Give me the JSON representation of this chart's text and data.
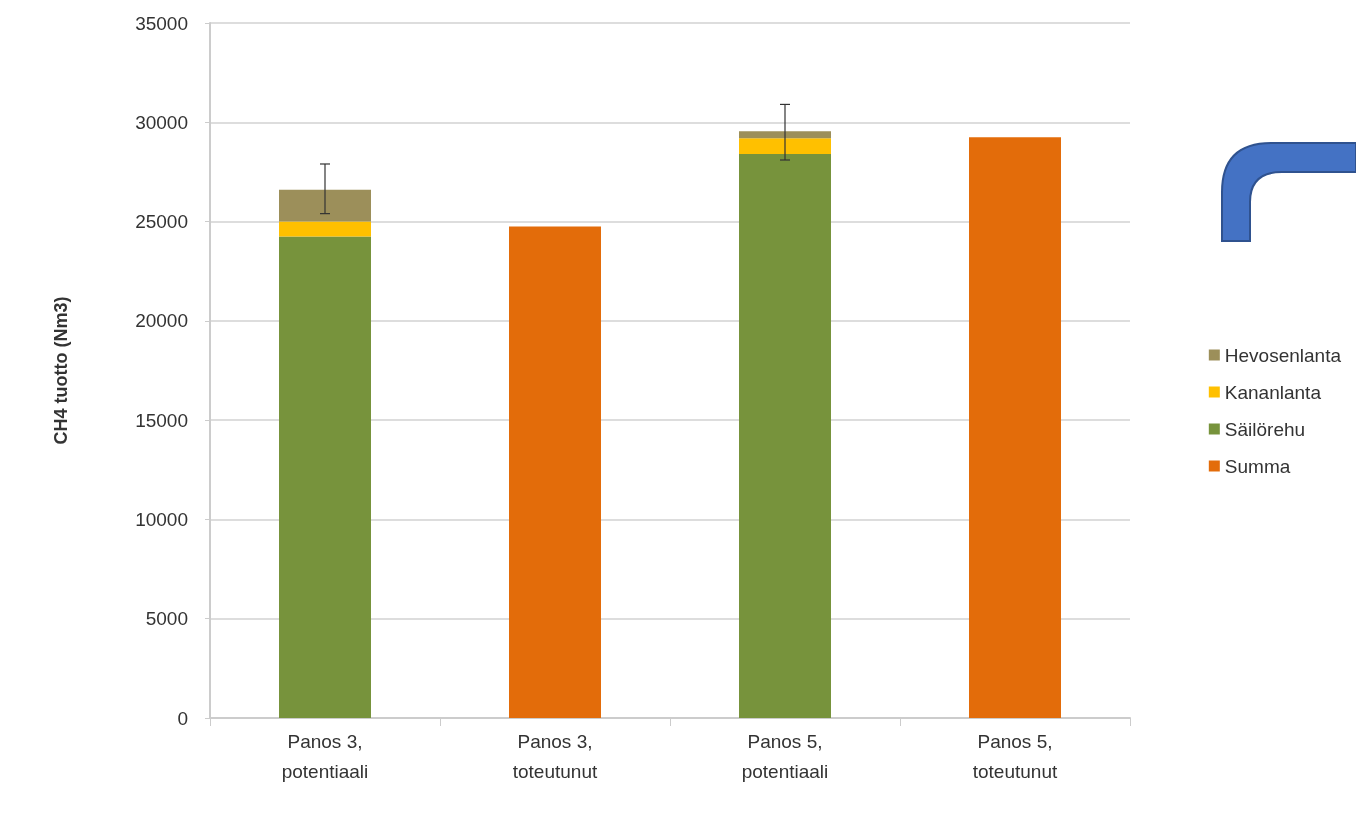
{
  "chart_data": {
    "type": "bar",
    "stacked": true,
    "ylabel": "CH4 tuotto (Nm3)",
    "categories": [
      "Panos 3, potentiaali",
      "Panos 3, toteutunut",
      "Panos 5, potentiaali",
      "Panos 5, toteutunut"
    ],
    "series": [
      {
        "name": "Summa",
        "color": "#e36c0a",
        "values": [
          null,
          24750,
          null,
          29250
        ]
      },
      {
        "name": "Säilörehu",
        "color": "#77933c",
        "values": [
          24250,
          null,
          28400,
          null
        ]
      },
      {
        "name": "Kananlanta",
        "color": "#ffc000",
        "values": [
          750,
          null,
          800,
          null
        ]
      },
      {
        "name": "Hevosenlanta",
        "color": "#9c8f5a",
        "values": [
          1600,
          null,
          350,
          null
        ],
        "errors": [
          [
            25400,
            27900
          ],
          null,
          [
            28100,
            30900
          ],
          null
        ]
      }
    ],
    "ylim": [
      0,
      35000
    ],
    "yticks": [
      0,
      5000,
      10000,
      15000,
      20000,
      25000,
      30000,
      35000
    ],
    "grid": "y",
    "legend": "right"
  }
}
